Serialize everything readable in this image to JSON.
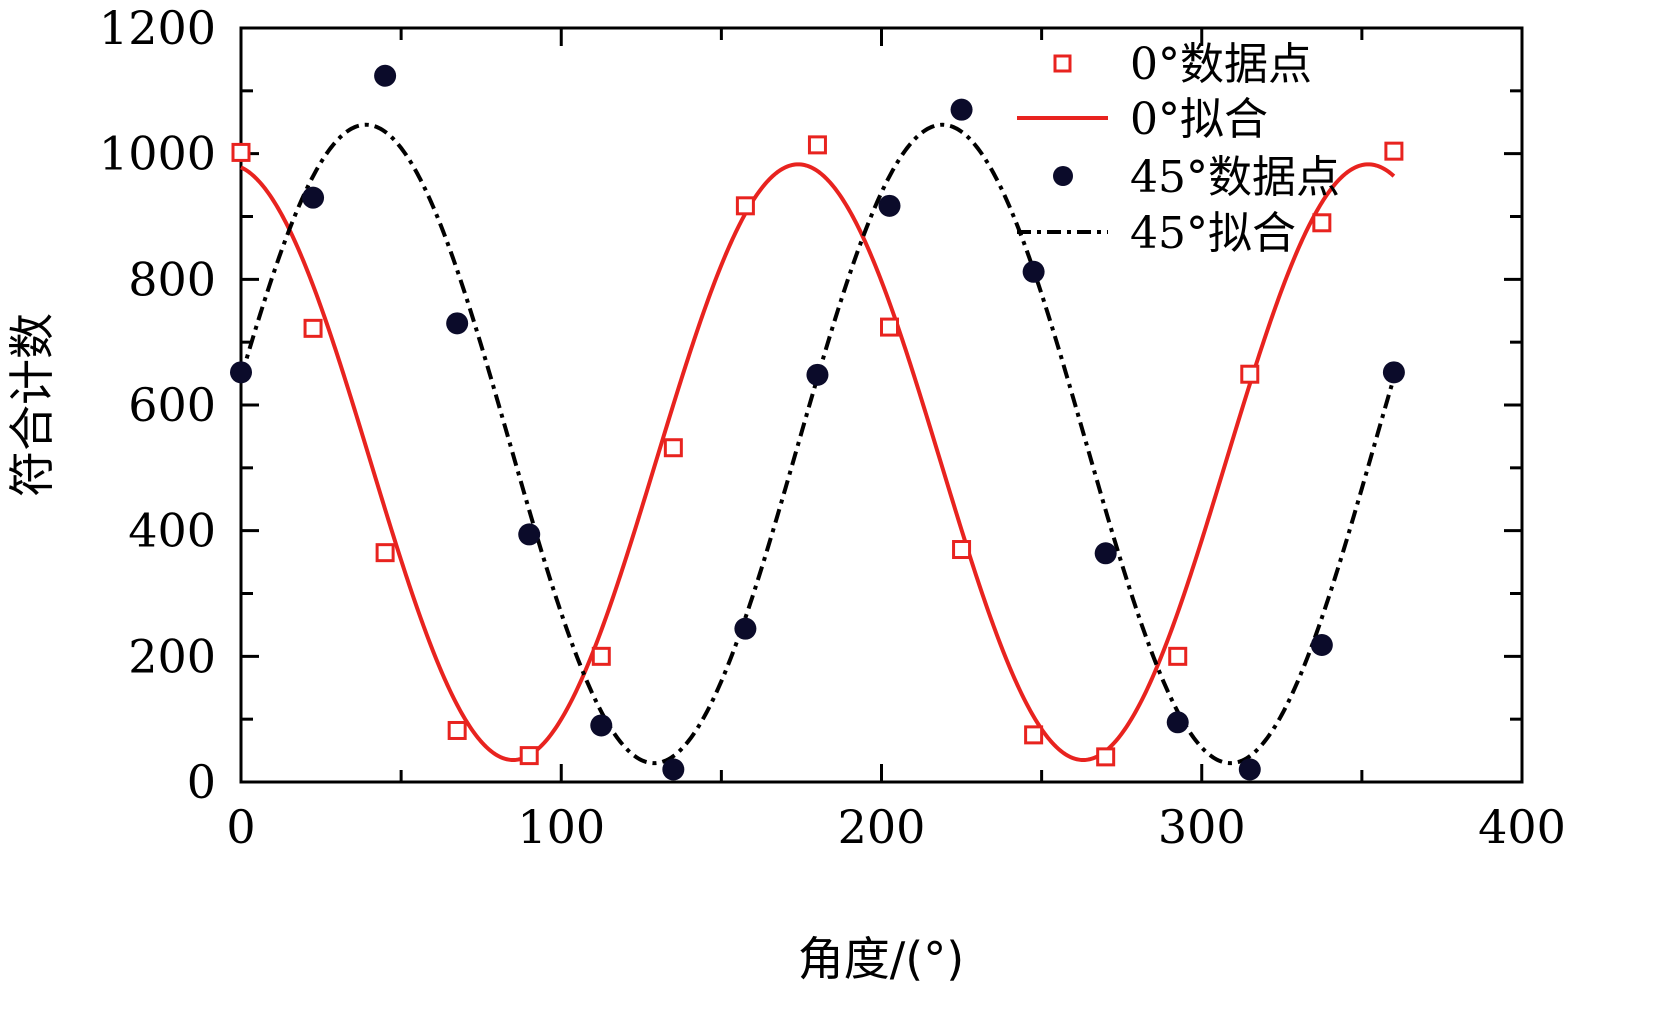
{
  "chart_data": {
    "type": "line",
    "title": "",
    "xlabel": "角度/(°)",
    "ylabel": "符合计数",
    "xlim": [
      0,
      400
    ],
    "ylim": [
      0,
      1200
    ],
    "x_ticks": [
      0,
      100,
      200,
      300,
      400
    ],
    "y_ticks": [
      0,
      200,
      400,
      600,
      800,
      1000,
      1200
    ],
    "x_tick_labels": [
      "0",
      "100",
      "200",
      "300",
      "400"
    ],
    "y_tick_labels": [
      "0",
      "200",
      "400",
      "600",
      "800",
      "1000",
      "1200"
    ],
    "grid": false,
    "legend_position": "top-right",
    "legend": [
      {
        "label": "0°数据点",
        "style": "open-square",
        "color": "#e8231f"
      },
      {
        "label": "0°拟合",
        "style": "solid-line",
        "color": "#e8231f"
      },
      {
        "label": "45°数据点",
        "style": "filled-circle",
        "color": "#0b0b2a"
      },
      {
        "label": "45°拟合",
        "style": "dash-dot-line",
        "color": "#000000"
      }
    ],
    "series": [
      {
        "name": "0°数据点",
        "kind": "scatter",
        "color": "#e8231f",
        "x": [
          0,
          22.5,
          45,
          67.5,
          90,
          112.5,
          135,
          157.5,
          180,
          202.5,
          225,
          247.5,
          270,
          292.5,
          315,
          337.5,
          360
        ],
        "y": [
          1002,
          722,
          365,
          82,
          42,
          200,
          532,
          917,
          1014,
          724,
          370,
          75,
          40,
          200,
          649,
          890,
          1004
        ]
      },
      {
        "name": "0°拟合",
        "kind": "line",
        "color": "#e8231f",
        "fit": {
          "offset": 509,
          "amplitude": 474,
          "period": 178,
          "phase_deg": -4
        }
      },
      {
        "name": "45°数据点",
        "kind": "scatter",
        "color": "#0b0b2a",
        "x": [
          0,
          22.5,
          45,
          67.5,
          90,
          112.5,
          135,
          157.5,
          180,
          202.5,
          225,
          247.5,
          270,
          292.5,
          315,
          337.5,
          360
        ],
        "y": [
          652,
          930,
          1124,
          730,
          394,
          90,
          20,
          244,
          648,
          917,
          1070,
          812,
          364,
          95,
          20,
          218,
          652
        ]
      },
      {
        "name": "45°拟合",
        "kind": "line",
        "color": "#000000",
        "fit": {
          "offset": 538,
          "amplitude": 508,
          "period": 180,
          "phase_deg": 39
        }
      }
    ]
  },
  "colors": {
    "red": "#e8231f",
    "black": "#000000",
    "navy": "#0b0b2a"
  }
}
